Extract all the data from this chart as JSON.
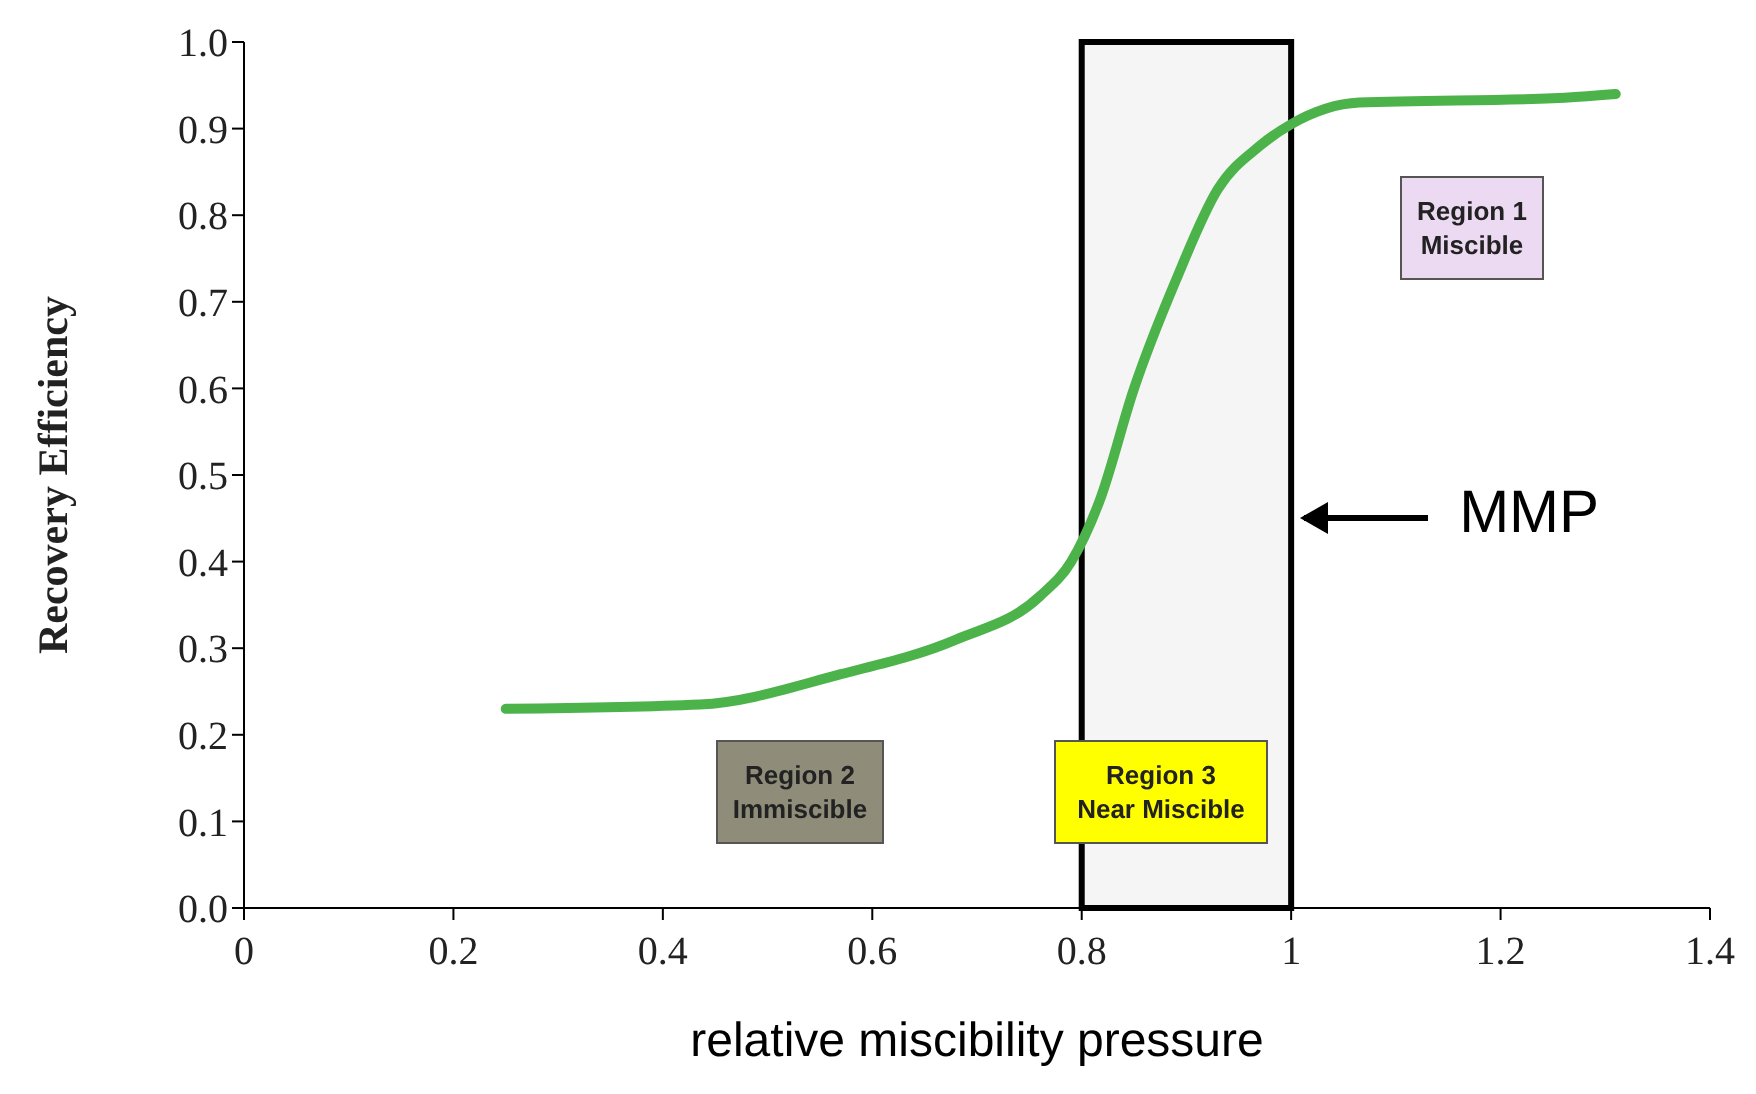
{
  "chart_data": {
    "type": "line",
    "xlabel": "relative miscibility pressure",
    "ylabel": "Recovery Efficiency",
    "x": [
      0.25,
      0.435,
      0.57,
      0.68,
      0.76,
      0.79,
      0.817,
      0.85,
      0.89,
      0.93,
      0.97,
      1.0,
      1.065,
      1.25,
      1.31
    ],
    "series": [
      {
        "color": "#4cb34a",
        "values": [
          0.23,
          0.235,
          0.27,
          0.31,
          0.36,
          0.4,
          0.47,
          0.6,
          0.725,
          0.83,
          0.88,
          0.905,
          0.93,
          0.935,
          0.94
        ]
      }
    ],
    "xlim": [
      0,
      1.4
    ],
    "xticks": [
      0,
      0.2,
      0.4,
      0.6,
      0.8,
      1,
      1.2,
      1.4
    ],
    "ylim": [
      0,
      1
    ],
    "yticks": [
      {
        "value": 0,
        "label": "0.0"
      },
      0.1,
      0.2,
      0.3,
      0.4,
      0.5,
      0.6,
      0.7,
      0.8,
      0.9,
      {
        "value": 1,
        "label": "1.0"
      }
    ],
    "bands": [
      {
        "axis": "x",
        "from": 0.8,
        "to": 1.0,
        "color": "#000000"
      }
    ],
    "annotations": [
      "Region 1\nMiscible",
      "Region 2\nImmiscible",
      "Region 3\nNear Miscible",
      "MMP"
    ],
    "grid": false,
    "legend": false,
    "marker": "none",
    "line_style": "solid"
  }
}
